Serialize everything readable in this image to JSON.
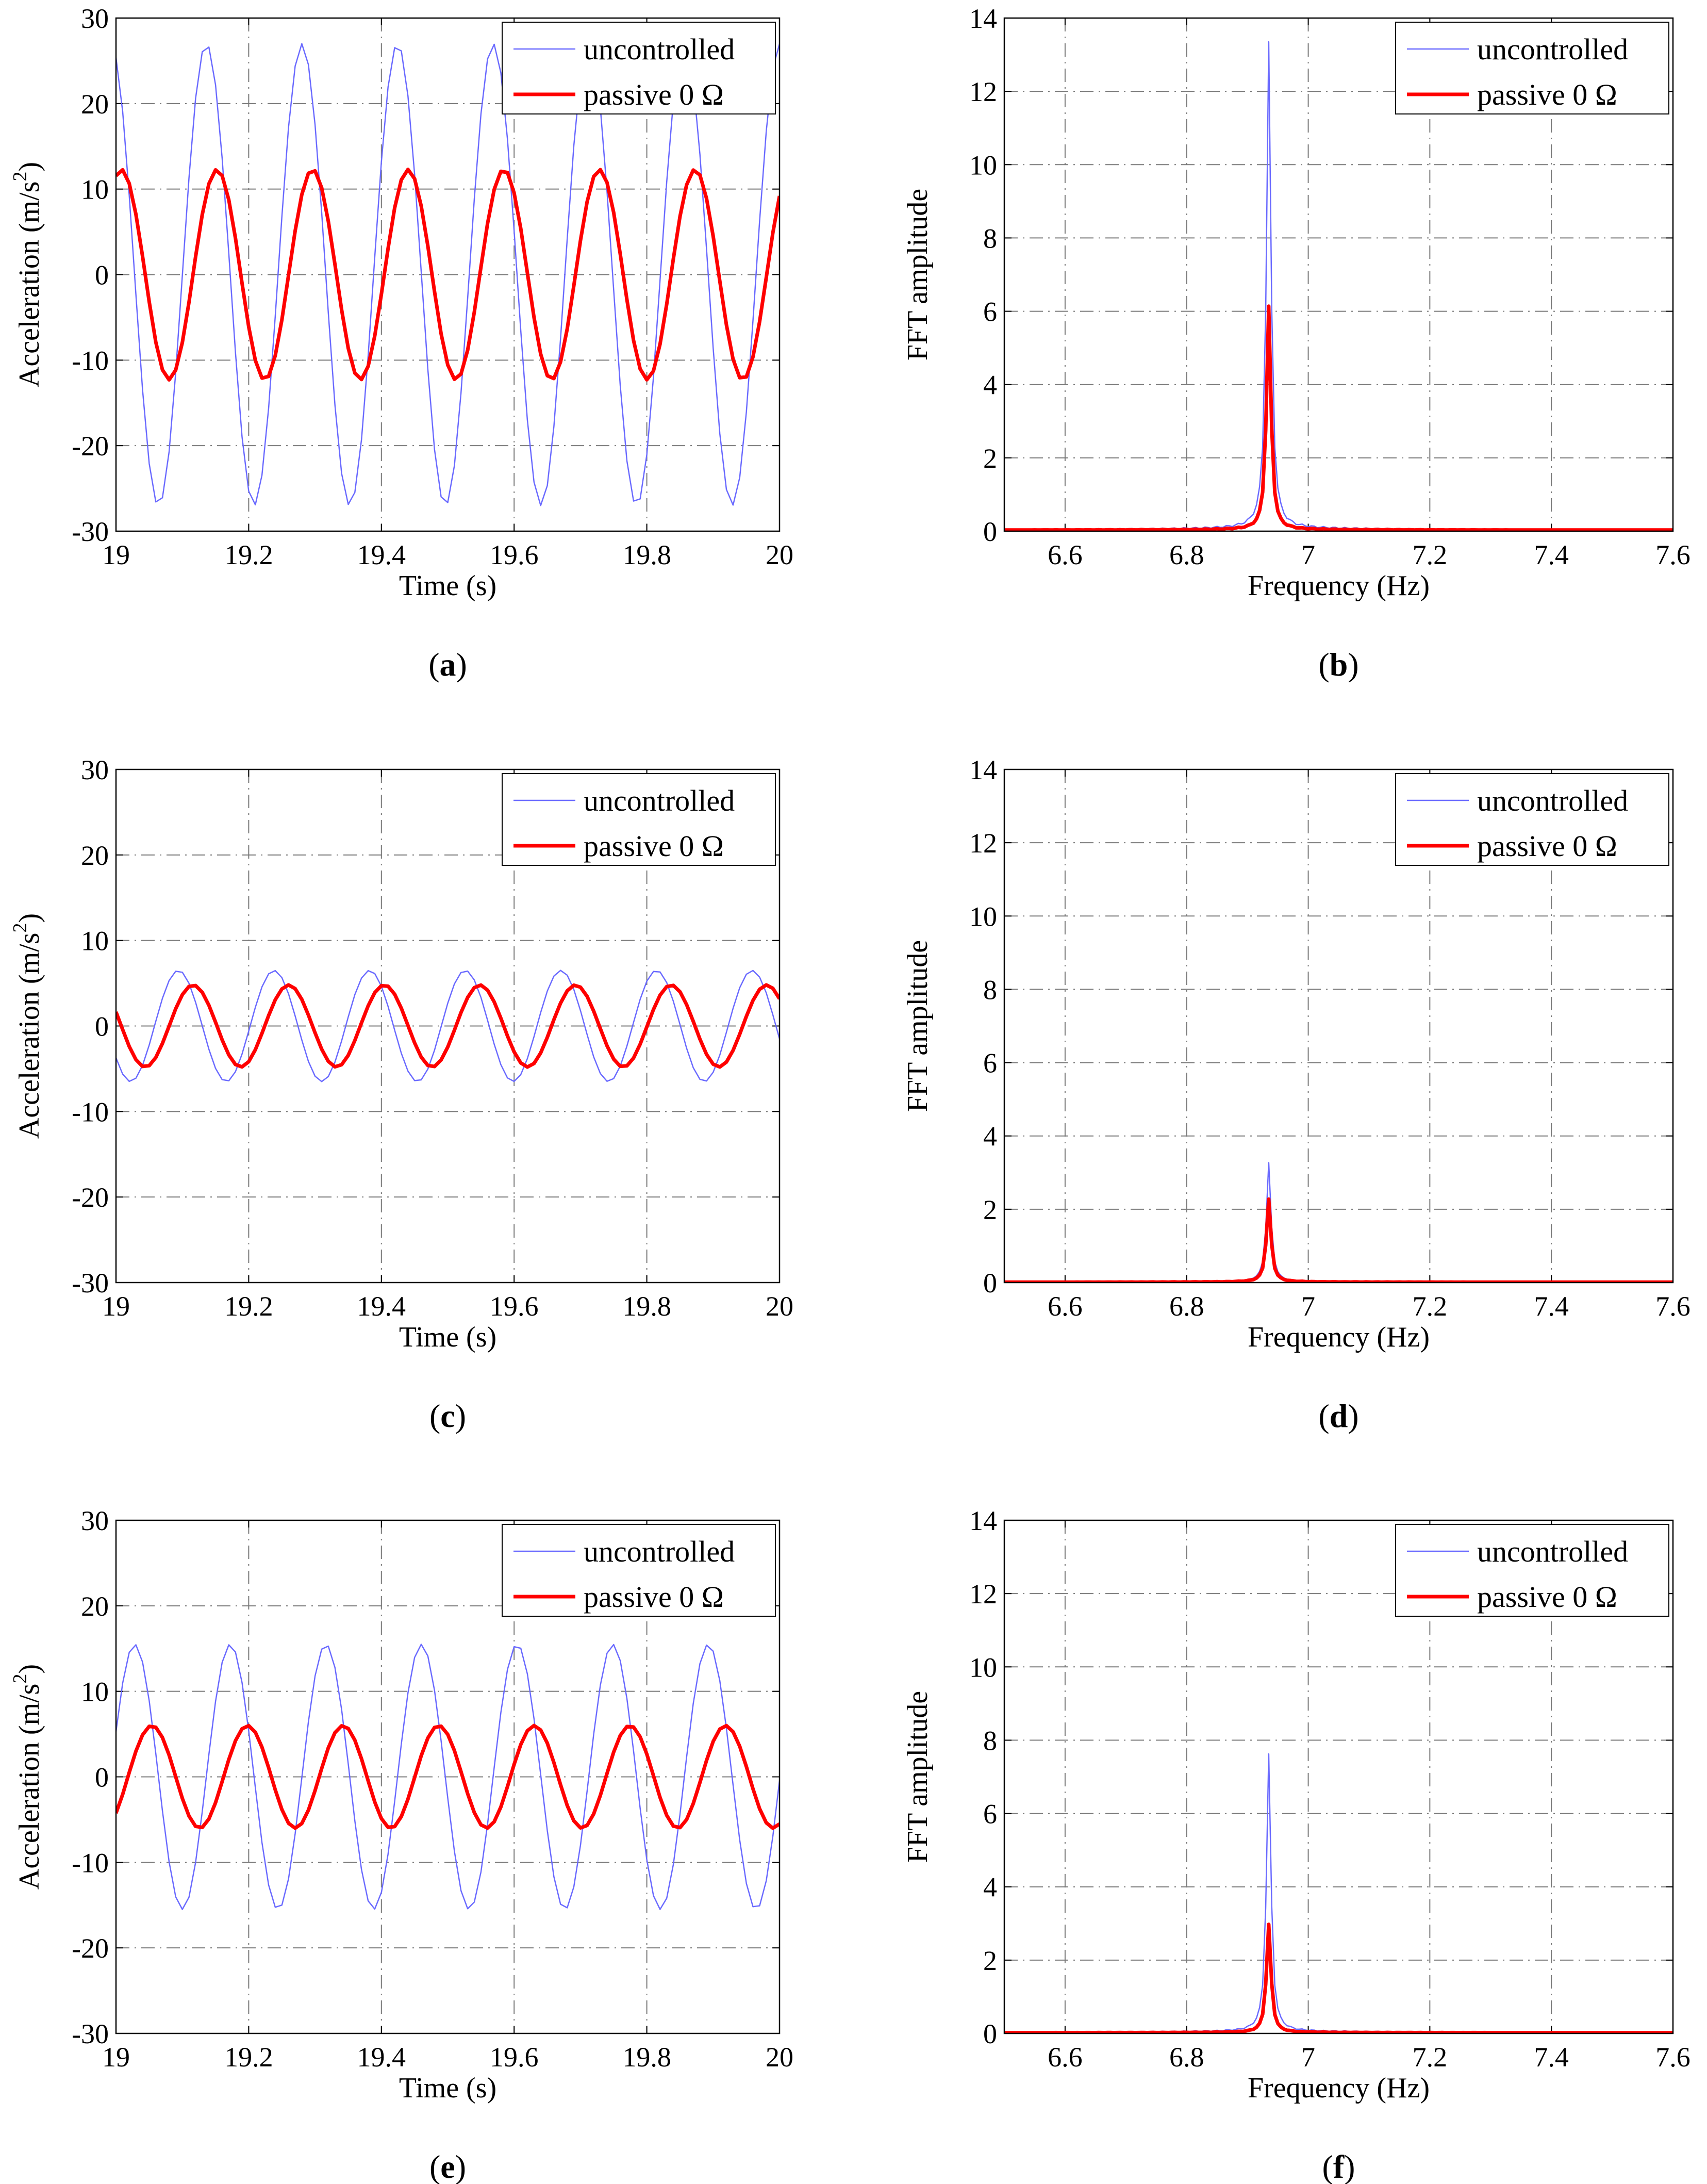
{
  "colors": {
    "uncontrolled": "#6a6aff",
    "passive": "#ff0000",
    "grid": "#7a7a7a"
  },
  "chart_data": [
    {
      "id": "a",
      "type": "line",
      "caption_letter": "a",
      "xlabel": "Time (s)",
      "ylabel": "Acceleration (m/s^2)",
      "ylabel_main": "Acceleration (m/s",
      "ylabel_sup": "2",
      "ylabel_end": ")",
      "xlim": [
        19,
        20
      ],
      "ylim": [
        -30,
        30
      ],
      "xticks": [
        "19",
        "19.2",
        "19.4",
        "19.6",
        "19.8",
        "20"
      ],
      "yticks": [
        "-30",
        "-20",
        "-10",
        "0",
        "10",
        "20",
        "30"
      ],
      "grid": true,
      "legend_position": "top-right",
      "series": [
        {
          "name": "uncontrolled",
          "signal": "sine",
          "amplitude": 27,
          "frequency_hz": 6.94,
          "phase_deg": 110
        },
        {
          "name": "passive 0 Ω",
          "signal": "sine",
          "amplitude": 12.3,
          "frequency_hz": 6.94,
          "phase_deg": 70
        }
      ]
    },
    {
      "id": "b",
      "type": "line",
      "caption_letter": "b",
      "xlabel": "Frequency (Hz)",
      "ylabel": "FFT amplitude",
      "xlim": [
        6.5,
        7.6
      ],
      "ylim": [
        0,
        14
      ],
      "xticks": [
        "6.6",
        "6.8",
        "7",
        "7.2",
        "7.4",
        "7.6"
      ],
      "yticks": [
        "0",
        "2",
        "4",
        "6",
        "8",
        "10",
        "12",
        "14"
      ],
      "grid": true,
      "legend_position": "top-right",
      "series": [
        {
          "name": "uncontrolled",
          "signal": "spectrum",
          "peak_hz": 6.935,
          "peak": 13.5,
          "floor": 0.05
        },
        {
          "name": "passive 0 Ω",
          "signal": "spectrum",
          "peak_hz": 6.935,
          "peak": 6.2,
          "floor": 0.03
        }
      ]
    },
    {
      "id": "c",
      "type": "line",
      "caption_letter": "c",
      "xlabel": "Time (s)",
      "ylabel": "Acceleration (m/s^2)",
      "ylabel_main": "Acceleration (m/s",
      "ylabel_sup": "2",
      "ylabel_end": ")",
      "xlim": [
        19,
        20
      ],
      "ylim": [
        -30,
        30
      ],
      "xticks": [
        "19",
        "19.2",
        "19.4",
        "19.6",
        "19.8",
        "20"
      ],
      "yticks": [
        "-30",
        "-20",
        "-10",
        "0",
        "10",
        "20",
        "30"
      ],
      "grid": true,
      "legend_position": "top-right",
      "series": [
        {
          "name": "uncontrolled",
          "signal": "sine",
          "amplitude": 6.5,
          "frequency_hz": 6.94,
          "phase_deg": 215
        },
        {
          "name": "passive 0 Ω",
          "signal": "sine",
          "amplitude": 4.8,
          "frequency_hz": 6.94,
          "phase_deg": 160
        }
      ]
    },
    {
      "id": "d",
      "type": "line",
      "caption_letter": "d",
      "xlabel": "Frequency (Hz)",
      "ylabel": "FFT amplitude",
      "xlim": [
        6.5,
        7.6
      ],
      "ylim": [
        0,
        14
      ],
      "xticks": [
        "6.6",
        "6.8",
        "7",
        "7.2",
        "7.4",
        "7.6"
      ],
      "yticks": [
        "0",
        "2",
        "4",
        "6",
        "8",
        "10",
        "12",
        "14"
      ],
      "grid": true,
      "legend_position": "top-right",
      "series": [
        {
          "name": "uncontrolled",
          "signal": "spectrum",
          "peak_hz": 6.935,
          "peak": 3.3,
          "floor": 0.02
        },
        {
          "name": "passive 0 Ω",
          "signal": "spectrum",
          "peak_hz": 6.935,
          "peak": 2.3,
          "floor": 0.01
        }
      ]
    },
    {
      "id": "e",
      "type": "line",
      "caption_letter": "e",
      "xlabel": "Time (s)",
      "ylabel": "Acceleration (m/s^2)",
      "ylabel_main": "Acceleration (m/s",
      "ylabel_sup": "2",
      "ylabel_end": ")",
      "xlim": [
        19,
        20
      ],
      "ylim": [
        -30,
        30
      ],
      "xticks": [
        "19",
        "19.2",
        "19.4",
        "19.6",
        "19.8",
        "20"
      ],
      "yticks": [
        "-30",
        "-20",
        "-10",
        "0",
        "10",
        "20",
        "30"
      ],
      "grid": true,
      "legend_position": "top-right",
      "series": [
        {
          "name": "uncontrolled",
          "signal": "sine",
          "amplitude": 15.5,
          "frequency_hz": 6.94,
          "phase_deg": 20
        },
        {
          "name": "passive 0 Ω",
          "signal": "sine",
          "amplitude": 6.0,
          "frequency_hz": 6.94,
          "phase_deg": 315
        }
      ]
    },
    {
      "id": "f",
      "type": "line",
      "caption_letter": "f",
      "xlabel": "Frequency (Hz)",
      "ylabel": "FFT amplitude",
      "xlim": [
        6.5,
        7.6
      ],
      "ylim": [
        0,
        14
      ],
      "xticks": [
        "6.6",
        "6.8",
        "7",
        "7.2",
        "7.4",
        "7.6"
      ],
      "yticks": [
        "0",
        "2",
        "4",
        "6",
        "8",
        "10",
        "12",
        "14"
      ],
      "grid": true,
      "legend_position": "top-right",
      "series": [
        {
          "name": "uncontrolled",
          "signal": "spectrum",
          "peak_hz": 6.935,
          "peak": 7.7,
          "floor": 0.04
        },
        {
          "name": "passive 0 Ω",
          "signal": "spectrum",
          "peak_hz": 6.935,
          "peak": 3.0,
          "floor": 0.02
        }
      ]
    }
  ]
}
